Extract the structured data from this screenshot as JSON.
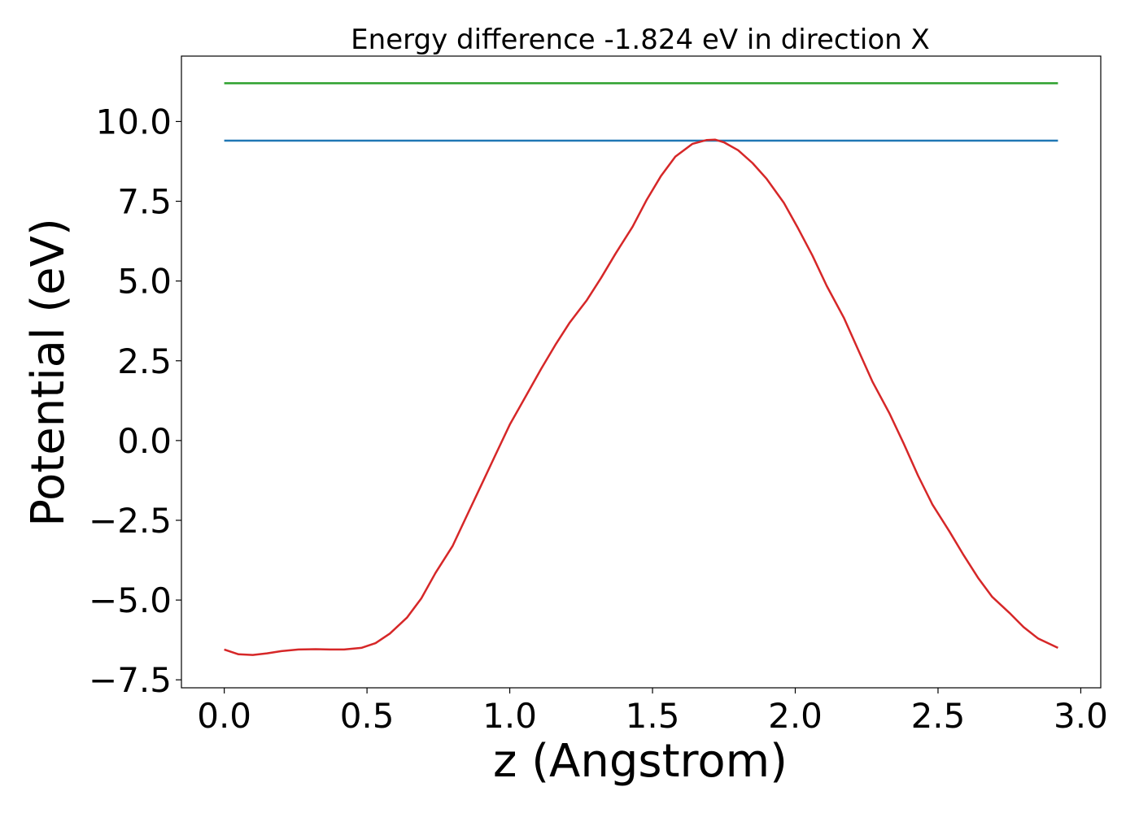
{
  "chart_data": {
    "type": "line",
    "title": "Energy difference -1.824 eV in direction X",
    "xlabel": "z (Angstrom)",
    "ylabel": "Potential (eV)",
    "xlim": [
      -0.15,
      3.07
    ],
    "ylim": [
      -7.75,
      12.05
    ],
    "grid": false,
    "x_ticks": [
      0.0,
      0.5,
      1.0,
      1.5,
      2.0,
      2.5,
      3.0
    ],
    "x_tick_labels": [
      "0.0",
      "0.5",
      "1.0",
      "1.5",
      "2.0",
      "2.5",
      "3.0"
    ],
    "y_ticks": [
      -7.5,
      -5.0,
      -2.5,
      0.0,
      2.5,
      5.0,
      7.5,
      10.0
    ],
    "y_tick_labels": [
      "−7.5",
      "−5.0",
      "−2.5",
      "0.0",
      "2.5",
      "5.0",
      "7.5",
      "10.0"
    ],
    "series": [
      {
        "color": "#2ca02c",
        "x": [
          0.0,
          2.92
        ],
        "y": [
          11.2,
          11.2
        ]
      },
      {
        "color": "#1f77b4",
        "x": [
          0.0,
          2.92
        ],
        "y": [
          9.4,
          9.4
        ]
      },
      {
        "color": "#d62728",
        "x": [
          0.0,
          0.05,
          0.1,
          0.15,
          0.2,
          0.26,
          0.32,
          0.37,
          0.42,
          0.48,
          0.53,
          0.58,
          0.64,
          0.69,
          0.74,
          0.8,
          0.85,
          0.9,
          0.95,
          1.0,
          1.06,
          1.11,
          1.16,
          1.21,
          1.27,
          1.32,
          1.37,
          1.43,
          1.48,
          1.53,
          1.58,
          1.64,
          1.69,
          1.72,
          1.75,
          1.8,
          1.85,
          1.9,
          1.96,
          2.01,
          2.06,
          2.11,
          2.17,
          2.22,
          2.27,
          2.33,
          2.38,
          2.43,
          2.48,
          2.54,
          2.59,
          2.64,
          2.69,
          2.75,
          2.8,
          2.85,
          2.92
        ],
        "y": [
          -6.55,
          -6.7,
          -6.72,
          -6.67,
          -6.6,
          -6.55,
          -6.54,
          -6.55,
          -6.55,
          -6.5,
          -6.35,
          -6.05,
          -5.55,
          -4.95,
          -4.15,
          -3.3,
          -2.35,
          -1.4,
          -0.45,
          0.5,
          1.45,
          2.25,
          3.0,
          3.7,
          4.4,
          5.1,
          5.85,
          6.7,
          7.55,
          8.3,
          8.9,
          9.3,
          9.42,
          9.43,
          9.35,
          9.1,
          8.7,
          8.2,
          7.45,
          6.65,
          5.8,
          4.85,
          3.85,
          2.85,
          1.85,
          0.85,
          -0.1,
          -1.1,
          -2.0,
          -2.85,
          -3.6,
          -4.3,
          -4.9,
          -5.4,
          -5.85,
          -6.2,
          -6.5
        ]
      }
    ]
  }
}
